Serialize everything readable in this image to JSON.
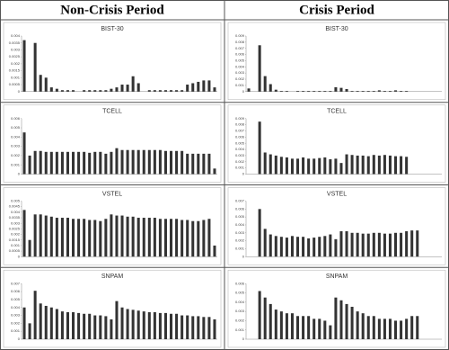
{
  "column_titles": [
    "Non-Crisis Period",
    "Crisis Period"
  ],
  "chart_data": [
    {
      "type": "bar",
      "title": "BIST-30",
      "color": "#333333",
      "ylim": [
        0,
        0.004
      ],
      "yticks": [
        0,
        0.0005,
        0.001,
        0.0015,
        0.002,
        0.0025,
        0.003,
        0.0035,
        0.004
      ],
      "values": [
        0.0037,
        0,
        0.0035,
        0.0012,
        0.001,
        0.0003,
        0.0002,
        0.0001,
        0.0001,
        0.0001,
        0,
        0.0001,
        0.0001,
        0.0001,
        0.0001,
        0.0001,
        0.0002,
        0.0003,
        0.0005,
        0.0005,
        0.0011,
        0.0006,
        0,
        0.0001,
        0.0001,
        0.0001,
        0.0001,
        0.0001,
        0.0001,
        0.0001,
        0.0005,
        0.0006,
        0.0007,
        0.0008,
        0.0008,
        0.0003
      ]
    },
    {
      "type": "bar",
      "title": "BIST-30",
      "color": "#333333",
      "ylim": [
        0,
        0.009
      ],
      "yticks": [
        0,
        0.001,
        0.002,
        0.003,
        0.004,
        0.005,
        0.006,
        0.007,
        0.008,
        0.009
      ],
      "values": [
        0.0005,
        0,
        0.0075,
        0.0025,
        0.0012,
        0.0003,
        0.0001,
        0.0001,
        0,
        0.0001,
        0.0001,
        0.0001,
        0.0001,
        0.0001,
        0.0001,
        0.0001,
        0.0007,
        0.0006,
        0.0004,
        0.0001,
        0.0001,
        0.0001,
        0.0001,
        0.0001,
        0.0002,
        0.0001,
        0.0001,
        0.0002,
        0.0001,
        0.0001,
        0,
        0,
        0,
        0,
        0,
        0
      ]
    },
    {
      "type": "bar",
      "title": "TCELL",
      "color": "#333333",
      "ylim": [
        0,
        0.006
      ],
      "yticks": [
        0,
        0.001,
        0.002,
        0.003,
        0.004,
        0.005,
        0.006
      ],
      "values": [
        0.0045,
        0.002,
        0.0025,
        0.0025,
        0.0024,
        0.0024,
        0.0024,
        0.0024,
        0.0024,
        0.0024,
        0.0024,
        0.0024,
        0.0023,
        0.0024,
        0.0024,
        0.0022,
        0.0024,
        0.0028,
        0.0026,
        0.0026,
        0.0026,
        0.0026,
        0.0026,
        0.0026,
        0.0026,
        0.0026,
        0.0025,
        0.0025,
        0.0025,
        0.0025,
        0.0022,
        0.0022,
        0.0022,
        0.0022,
        0.0022,
        0.0006
      ]
    },
    {
      "type": "bar",
      "title": "TCELL",
      "color": "#333333",
      "ylim": [
        0,
        0.009
      ],
      "yticks": [
        0,
        0.001,
        0.002,
        0.003,
        0.004,
        0.005,
        0.006,
        0.007,
        0.008,
        0.009
      ],
      "values": [
        0,
        0,
        0.0085,
        0.0035,
        0.0032,
        0.003,
        0.0028,
        0.0027,
        0.0025,
        0.0025,
        0.0027,
        0.0025,
        0.0025,
        0.0026,
        0.0027,
        0.0024,
        0.0025,
        0.0018,
        0.0032,
        0.0031,
        0.003,
        0.003,
        0.0029,
        0.0031,
        0.003,
        0.0031,
        0.003,
        0.0029,
        0.0029,
        0.0028,
        0,
        0,
        0,
        0,
        0,
        0
      ]
    },
    {
      "type": "bar",
      "title": "VSTEL",
      "color": "#333333",
      "ylim": [
        0,
        0.005
      ],
      "yticks": [
        0,
        0.0005,
        0.001,
        0.0015,
        0.002,
        0.0025,
        0.003,
        0.0035,
        0.004,
        0.0045,
        0.005
      ],
      "values": [
        0.0042,
        0.0015,
        0.0038,
        0.0038,
        0.0037,
        0.0036,
        0.0035,
        0.0035,
        0.0035,
        0.0034,
        0.0034,
        0.0034,
        0.0033,
        0.0033,
        0.0032,
        0.0034,
        0.0038,
        0.0037,
        0.0037,
        0.0036,
        0.0036,
        0.0035,
        0.0035,
        0.0035,
        0.0035,
        0.0034,
        0.0034,
        0.0034,
        0.0034,
        0.0033,
        0.0033,
        0.0032,
        0.0032,
        0.0033,
        0.0034,
        0.001
      ]
    },
    {
      "type": "bar",
      "title": "VSTEL",
      "color": "#333333",
      "ylim": [
        0,
        0.007
      ],
      "yticks": [
        0,
        0.001,
        0.002,
        0.003,
        0.004,
        0.005,
        0.006,
        0.007
      ],
      "values": [
        0,
        0,
        0.006,
        0.0035,
        0.0028,
        0.0026,
        0.0025,
        0.0024,
        0.0026,
        0.0025,
        0.0025,
        0.0023,
        0.0024,
        0.0025,
        0.0026,
        0.0028,
        0.0022,
        0.0032,
        0.0032,
        0.003,
        0.003,
        0.0029,
        0.0029,
        0.003,
        0.003,
        0.0029,
        0.0029,
        0.003,
        0.003,
        0.0032,
        0.0033,
        0.0033,
        0,
        0,
        0,
        0
      ]
    },
    {
      "type": "bar",
      "title": "SNPAM",
      "color": "#333333",
      "ylim": [
        0,
        0.007
      ],
      "yticks": [
        0,
        0.001,
        0.002,
        0.003,
        0.004,
        0.005,
        0.006,
        0.007
      ],
      "values": [
        0.004,
        0.002,
        0.0061,
        0.0045,
        0.0042,
        0.004,
        0.0038,
        0.0035,
        0.0034,
        0.0034,
        0.0033,
        0.0032,
        0.0032,
        0.003,
        0.003,
        0.0029,
        0.0025,
        0.0048,
        0.004,
        0.0038,
        0.0037,
        0.0036,
        0.0035,
        0.0034,
        0.0034,
        0.0033,
        0.0033,
        0.0032,
        0.0032,
        0.003,
        0.003,
        0.0029,
        0.0029,
        0.0028,
        0.0028,
        0.0025
      ]
    },
    {
      "type": "bar",
      "title": "SNPAM",
      "color": "#333333",
      "ylim": [
        0,
        0.006
      ],
      "yticks": [
        0,
        0.001,
        0.002,
        0.003,
        0.004,
        0.005,
        0.006
      ],
      "values": [
        0,
        0,
        0.0052,
        0.0045,
        0.0038,
        0.0032,
        0.003,
        0.0028,
        0.0028,
        0.0025,
        0.0025,
        0.0025,
        0.0022,
        0.0022,
        0.002,
        0.0015,
        0.0045,
        0.0042,
        0.0038,
        0.0035,
        0.003,
        0.0028,
        0.0025,
        0.0025,
        0.0022,
        0.0022,
        0.0022,
        0.002,
        0.002,
        0.0022,
        0.0025,
        0.0025,
        0,
        0,
        0,
        0
      ]
    }
  ]
}
